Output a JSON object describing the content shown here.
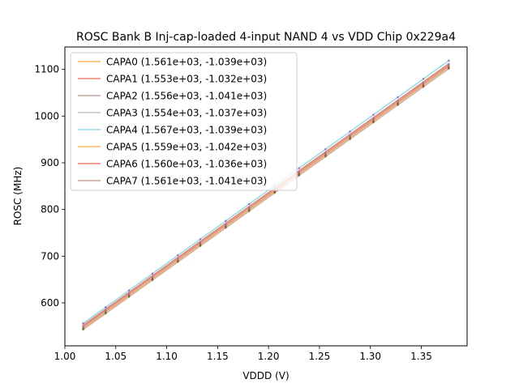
{
  "chart_data": {
    "type": "line",
    "title": "ROSC Bank B Inj-cap-loaded 4-input NAND 4 vs VDD Chip 0x229a4",
    "xlabel": "VDDD (V)",
    "ylabel": "ROSC (MHz)",
    "xlim": [
      1.0,
      1.395
    ],
    "ylim": [
      508,
      1148
    ],
    "x_ticks": [
      1.0,
      1.05,
      1.1,
      1.15,
      1.2,
      1.25,
      1.3,
      1.35
    ],
    "x_tick_labels": [
      "1.00",
      "1.05",
      "1.10",
      "1.15",
      "1.20",
      "1.25",
      "1.30",
      "1.35"
    ],
    "y_ticks": [
      600,
      700,
      800,
      900,
      1000,
      1100
    ],
    "y_tick_labels": [
      "600",
      "700",
      "800",
      "900",
      "1000",
      "1100"
    ],
    "grid": false,
    "legend_position": "upper-left",
    "fit_x_range": [
      1.018,
      1.377
    ],
    "measurement_x": [
      1.018,
      1.04,
      1.063,
      1.086,
      1.111,
      1.133,
      1.158,
      1.181,
      1.206,
      1.23,
      1.256,
      1.28,
      1.303,
      1.327,
      1.352,
      1.377
    ],
    "series": [
      {
        "name": "CAPA0",
        "label": "CAPA0 (1.561e+03, -1.039e+03)",
        "slope": 1561,
        "intercept": -1039,
        "color": "#ffb366"
      },
      {
        "name": "CAPA1",
        "label": "CAPA1 (1.553e+03, -1.032e+03)",
        "slope": 1553,
        "intercept": -1032,
        "color": "#e8806f"
      },
      {
        "name": "CAPA2",
        "label": "CAPA2 (1.556e+03, -1.041e+03)",
        "slope": 1556,
        "intercept": -1041,
        "color": "#c9a3a1"
      },
      {
        "name": "CAPA3",
        "label": "CAPA3 (1.554e+03, -1.037e+03)",
        "slope": 1554,
        "intercept": -1037,
        "color": "#c4c4c4"
      },
      {
        "name": "CAPA4",
        "label": "CAPA4 (1.567e+03, -1.039e+03)",
        "slope": 1567,
        "intercept": -1039,
        "color": "#8fdde8"
      },
      {
        "name": "CAPA5",
        "label": "CAPA5 (1.559e+03, -1.042e+03)",
        "slope": 1559,
        "intercept": -1042,
        "color": "#ffb366"
      },
      {
        "name": "CAPA6",
        "label": "CAPA6 (1.560e+03, -1.036e+03)",
        "slope": 1560,
        "intercept": -1036,
        "color": "#e8806f"
      },
      {
        "name": "CAPA7",
        "label": "CAPA7 (1.561e+03, -1.041e+03)",
        "slope": 1561,
        "intercept": -1041,
        "color": "#c9a3a1"
      }
    ],
    "marker_colors": [
      "#1f77b4",
      "#ff7f0e",
      "#2ca02c",
      "#d62728",
      "#9467bd",
      "#8c564b",
      "#e377c2",
      "#7f7f7f"
    ]
  }
}
